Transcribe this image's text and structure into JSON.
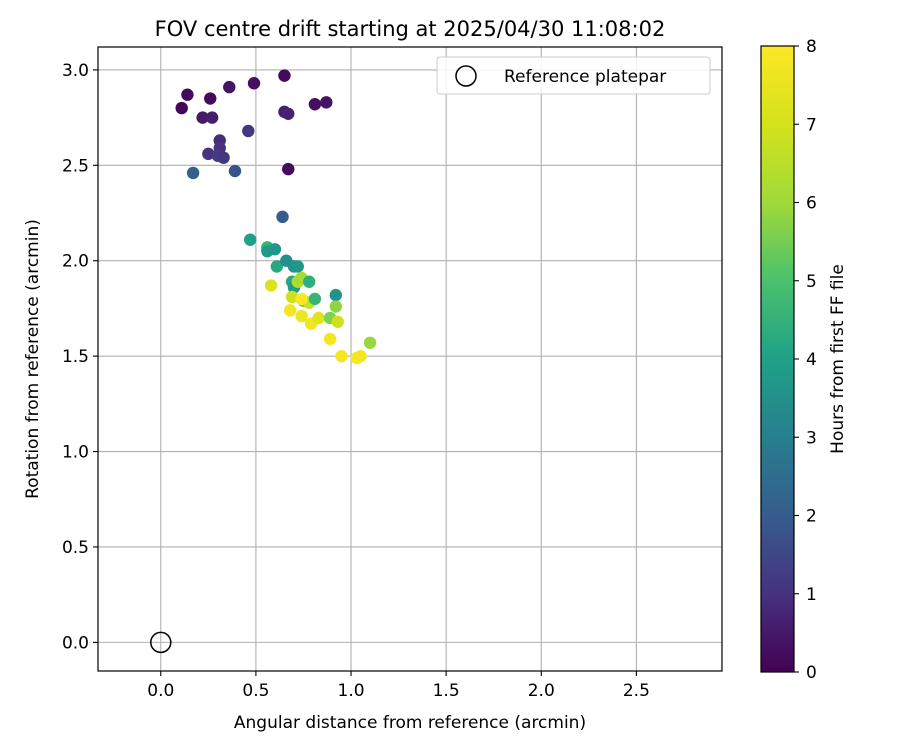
{
  "chart_data": {
    "type": "scatter",
    "title": "FOV centre drift starting at 2025/04/30 11:08:02",
    "xlabel": "Angular distance from reference (arcmin)",
    "ylabel": "Rotation from reference (arcmin)",
    "xlim": [
      -0.33,
      2.95
    ],
    "ylim": [
      -0.15,
      3.12
    ],
    "xticks": [
      0.0,
      0.5,
      1.0,
      1.5,
      2.0,
      2.5
    ],
    "xtick_labels": [
      "0.0",
      "0.5",
      "1.0",
      "1.5",
      "2.0",
      "2.5"
    ],
    "yticks": [
      0.0,
      0.5,
      1.0,
      1.5,
      2.0,
      2.5,
      3.0
    ],
    "ytick_labels": [
      "0.0",
      "0.5",
      "1.0",
      "1.5",
      "2.0",
      "2.5",
      "3.0"
    ],
    "grid": true,
    "legend": {
      "position": "top-right",
      "entries": [
        "Reference platepar"
      ]
    },
    "reference_point": {
      "x": 0.0,
      "y": 0.0,
      "marker": "hollow-circle"
    },
    "colorbar": {
      "label": "Hours from first FF file",
      "colormap": "viridis",
      "range": [
        0,
        8
      ],
      "ticks": [
        0,
        1,
        2,
        3,
        4,
        5,
        6,
        7,
        8
      ],
      "tick_labels": [
        "0",
        "1",
        "2",
        "3",
        "4",
        "5",
        "6",
        "7",
        "8"
      ]
    },
    "points": [
      {
        "x": 0.11,
        "y": 2.8,
        "c": 0.1
      },
      {
        "x": 0.14,
        "y": 2.87,
        "c": 0.2
      },
      {
        "x": 0.26,
        "y": 2.85,
        "c": 0.2
      },
      {
        "x": 0.22,
        "y": 2.75,
        "c": 0.5
      },
      {
        "x": 0.27,
        "y": 2.75,
        "c": 0.6
      },
      {
        "x": 0.36,
        "y": 2.91,
        "c": 0.4
      },
      {
        "x": 0.49,
        "y": 2.93,
        "c": 0.3
      },
      {
        "x": 0.65,
        "y": 2.97,
        "c": 0.2
      },
      {
        "x": 0.81,
        "y": 2.82,
        "c": 0.3
      },
      {
        "x": 0.87,
        "y": 2.83,
        "c": 0.4
      },
      {
        "x": 0.65,
        "y": 2.78,
        "c": 0.6
      },
      {
        "x": 0.67,
        "y": 2.77,
        "c": 0.7
      },
      {
        "x": 0.46,
        "y": 2.68,
        "c": 1.1
      },
      {
        "x": 0.31,
        "y": 2.63,
        "c": 0.9
      },
      {
        "x": 0.31,
        "y": 2.59,
        "c": 1.0
      },
      {
        "x": 0.25,
        "y": 2.56,
        "c": 1.0
      },
      {
        "x": 0.3,
        "y": 2.55,
        "c": 1.2
      },
      {
        "x": 0.33,
        "y": 2.54,
        "c": 1.1
      },
      {
        "x": 0.17,
        "y": 2.46,
        "c": 2.1
      },
      {
        "x": 0.39,
        "y": 2.47,
        "c": 1.8
      },
      {
        "x": 0.67,
        "y": 2.48,
        "c": 0.2
      },
      {
        "x": 0.64,
        "y": 2.23,
        "c": 2.0
      },
      {
        "x": 0.47,
        "y": 2.11,
        "c": 4.0
      },
      {
        "x": 0.56,
        "y": 2.07,
        "c": 4.6
      },
      {
        "x": 0.56,
        "y": 2.05,
        "c": 3.8
      },
      {
        "x": 0.6,
        "y": 2.06,
        "c": 3.7
      },
      {
        "x": 0.61,
        "y": 1.97,
        "c": 4.2
      },
      {
        "x": 0.66,
        "y": 2.0,
        "c": 3.5
      },
      {
        "x": 0.7,
        "y": 1.97,
        "c": 3.6
      },
      {
        "x": 0.72,
        "y": 1.97,
        "c": 3.7
      },
      {
        "x": 0.69,
        "y": 1.89,
        "c": 4.2
      },
      {
        "x": 0.7,
        "y": 1.86,
        "c": 3.8
      },
      {
        "x": 0.72,
        "y": 1.89,
        "c": 6.3
      },
      {
        "x": 0.74,
        "y": 1.91,
        "c": 6.1
      },
      {
        "x": 0.78,
        "y": 1.89,
        "c": 4.4
      },
      {
        "x": 0.69,
        "y": 1.81,
        "c": 6.9
      },
      {
        "x": 0.75,
        "y": 1.79,
        "c": 5.4
      },
      {
        "x": 0.78,
        "y": 1.78,
        "c": 6.7
      },
      {
        "x": 0.81,
        "y": 1.8,
        "c": 4.6
      },
      {
        "x": 0.92,
        "y": 1.82,
        "c": 3.6
      },
      {
        "x": 0.58,
        "y": 1.87,
        "c": 7.2
      },
      {
        "x": 0.74,
        "y": 1.8,
        "c": 7.9
      },
      {
        "x": 0.68,
        "y": 1.74,
        "c": 7.8
      },
      {
        "x": 0.74,
        "y": 1.71,
        "c": 7.6
      },
      {
        "x": 0.79,
        "y": 1.67,
        "c": 7.7
      },
      {
        "x": 0.83,
        "y": 1.7,
        "c": 7.3
      },
      {
        "x": 0.89,
        "y": 1.7,
        "c": 5.6
      },
      {
        "x": 0.92,
        "y": 1.76,
        "c": 5.8
      },
      {
        "x": 0.93,
        "y": 1.68,
        "c": 6.9
      },
      {
        "x": 1.1,
        "y": 1.57,
        "c": 5.9
      },
      {
        "x": 0.89,
        "y": 1.59,
        "c": 7.8
      },
      {
        "x": 0.95,
        "y": 1.5,
        "c": 7.8
      },
      {
        "x": 1.03,
        "y": 1.49,
        "c": 7.9
      },
      {
        "x": 1.05,
        "y": 1.5,
        "c": 7.8
      }
    ]
  }
}
